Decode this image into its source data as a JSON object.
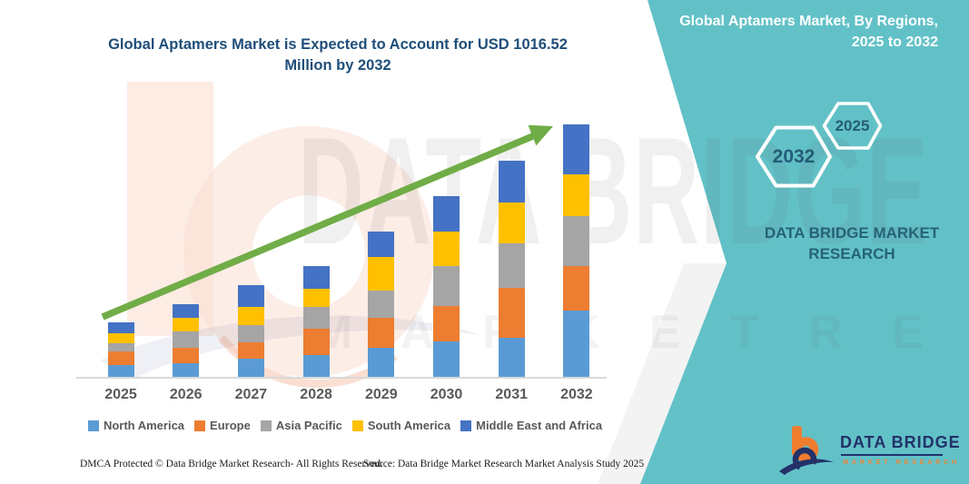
{
  "header": {
    "title": "Global Aptamers Market is Expected to Account for USD 1016.52 Million by 2032"
  },
  "banner": {
    "background_color": "#62C1C7",
    "title_line1": "Global Aptamers Market, By Regions,",
    "title_line2": "2025 to 2032",
    "hexagon_left": "2032",
    "hexagon_right": "2025",
    "brand_line1": "DATA BRIDGE MARKET",
    "brand_line2": "RESEARCH"
  },
  "watermark": {
    "line1": "DATA BRIDGE",
    "line2": "M A R K E T   R E S E A R C H"
  },
  "chart_data": {
    "type": "bar",
    "stacked": true,
    "title": "Global Aptamers Market is Expected to Account for USD 1016.52 Million by 2032",
    "unit": "USD Million",
    "categories": [
      "2025",
      "2026",
      "2027",
      "2028",
      "2029",
      "2030",
      "2031",
      "2032"
    ],
    "series": [
      {
        "name": "North America",
        "color": "#5B9BD5",
        "values": [
          49,
          55,
          73,
          89,
          116,
          142,
          158,
          268
        ]
      },
      {
        "name": "Europe",
        "color": "#ED7D31",
        "values": [
          55,
          61,
          67,
          106,
          122,
          144,
          201,
          176
        ]
      },
      {
        "name": "Asia Pacific",
        "color": "#A5A5A5",
        "values": [
          30,
          67,
          67,
          85,
          110,
          158,
          177,
          201
        ]
      },
      {
        "name": "South America",
        "color": "#FFC000",
        "values": [
          43,
          55,
          73,
          73,
          134,
          140,
          164,
          170.5
        ]
      },
      {
        "name": "Middle East and Africa",
        "color": "#4472C4",
        "values": [
          43,
          55,
          88,
          91,
          101,
          144,
          171,
          201
        ]
      }
    ],
    "totals": [
      220,
      293,
      368,
      444,
      583,
      728,
      871,
      1016.52
    ],
    "ylim": [
      0,
      1100
    ],
    "gridlines": false,
    "legend_position": "bottom",
    "trend_arrow_color": "#70AD47"
  },
  "logo": {
    "name": "DATA BRIDGE",
    "subtitle": "MARKET RESEARCH",
    "navy": "#233168",
    "orange": "#EF7D2E"
  },
  "footer": {
    "left": "DMCA Protected © Data Bridge Market Research-  All Rights Reserved.",
    "right": "Source: Data Bridge Market Research  Market Analysis Study 2025"
  }
}
